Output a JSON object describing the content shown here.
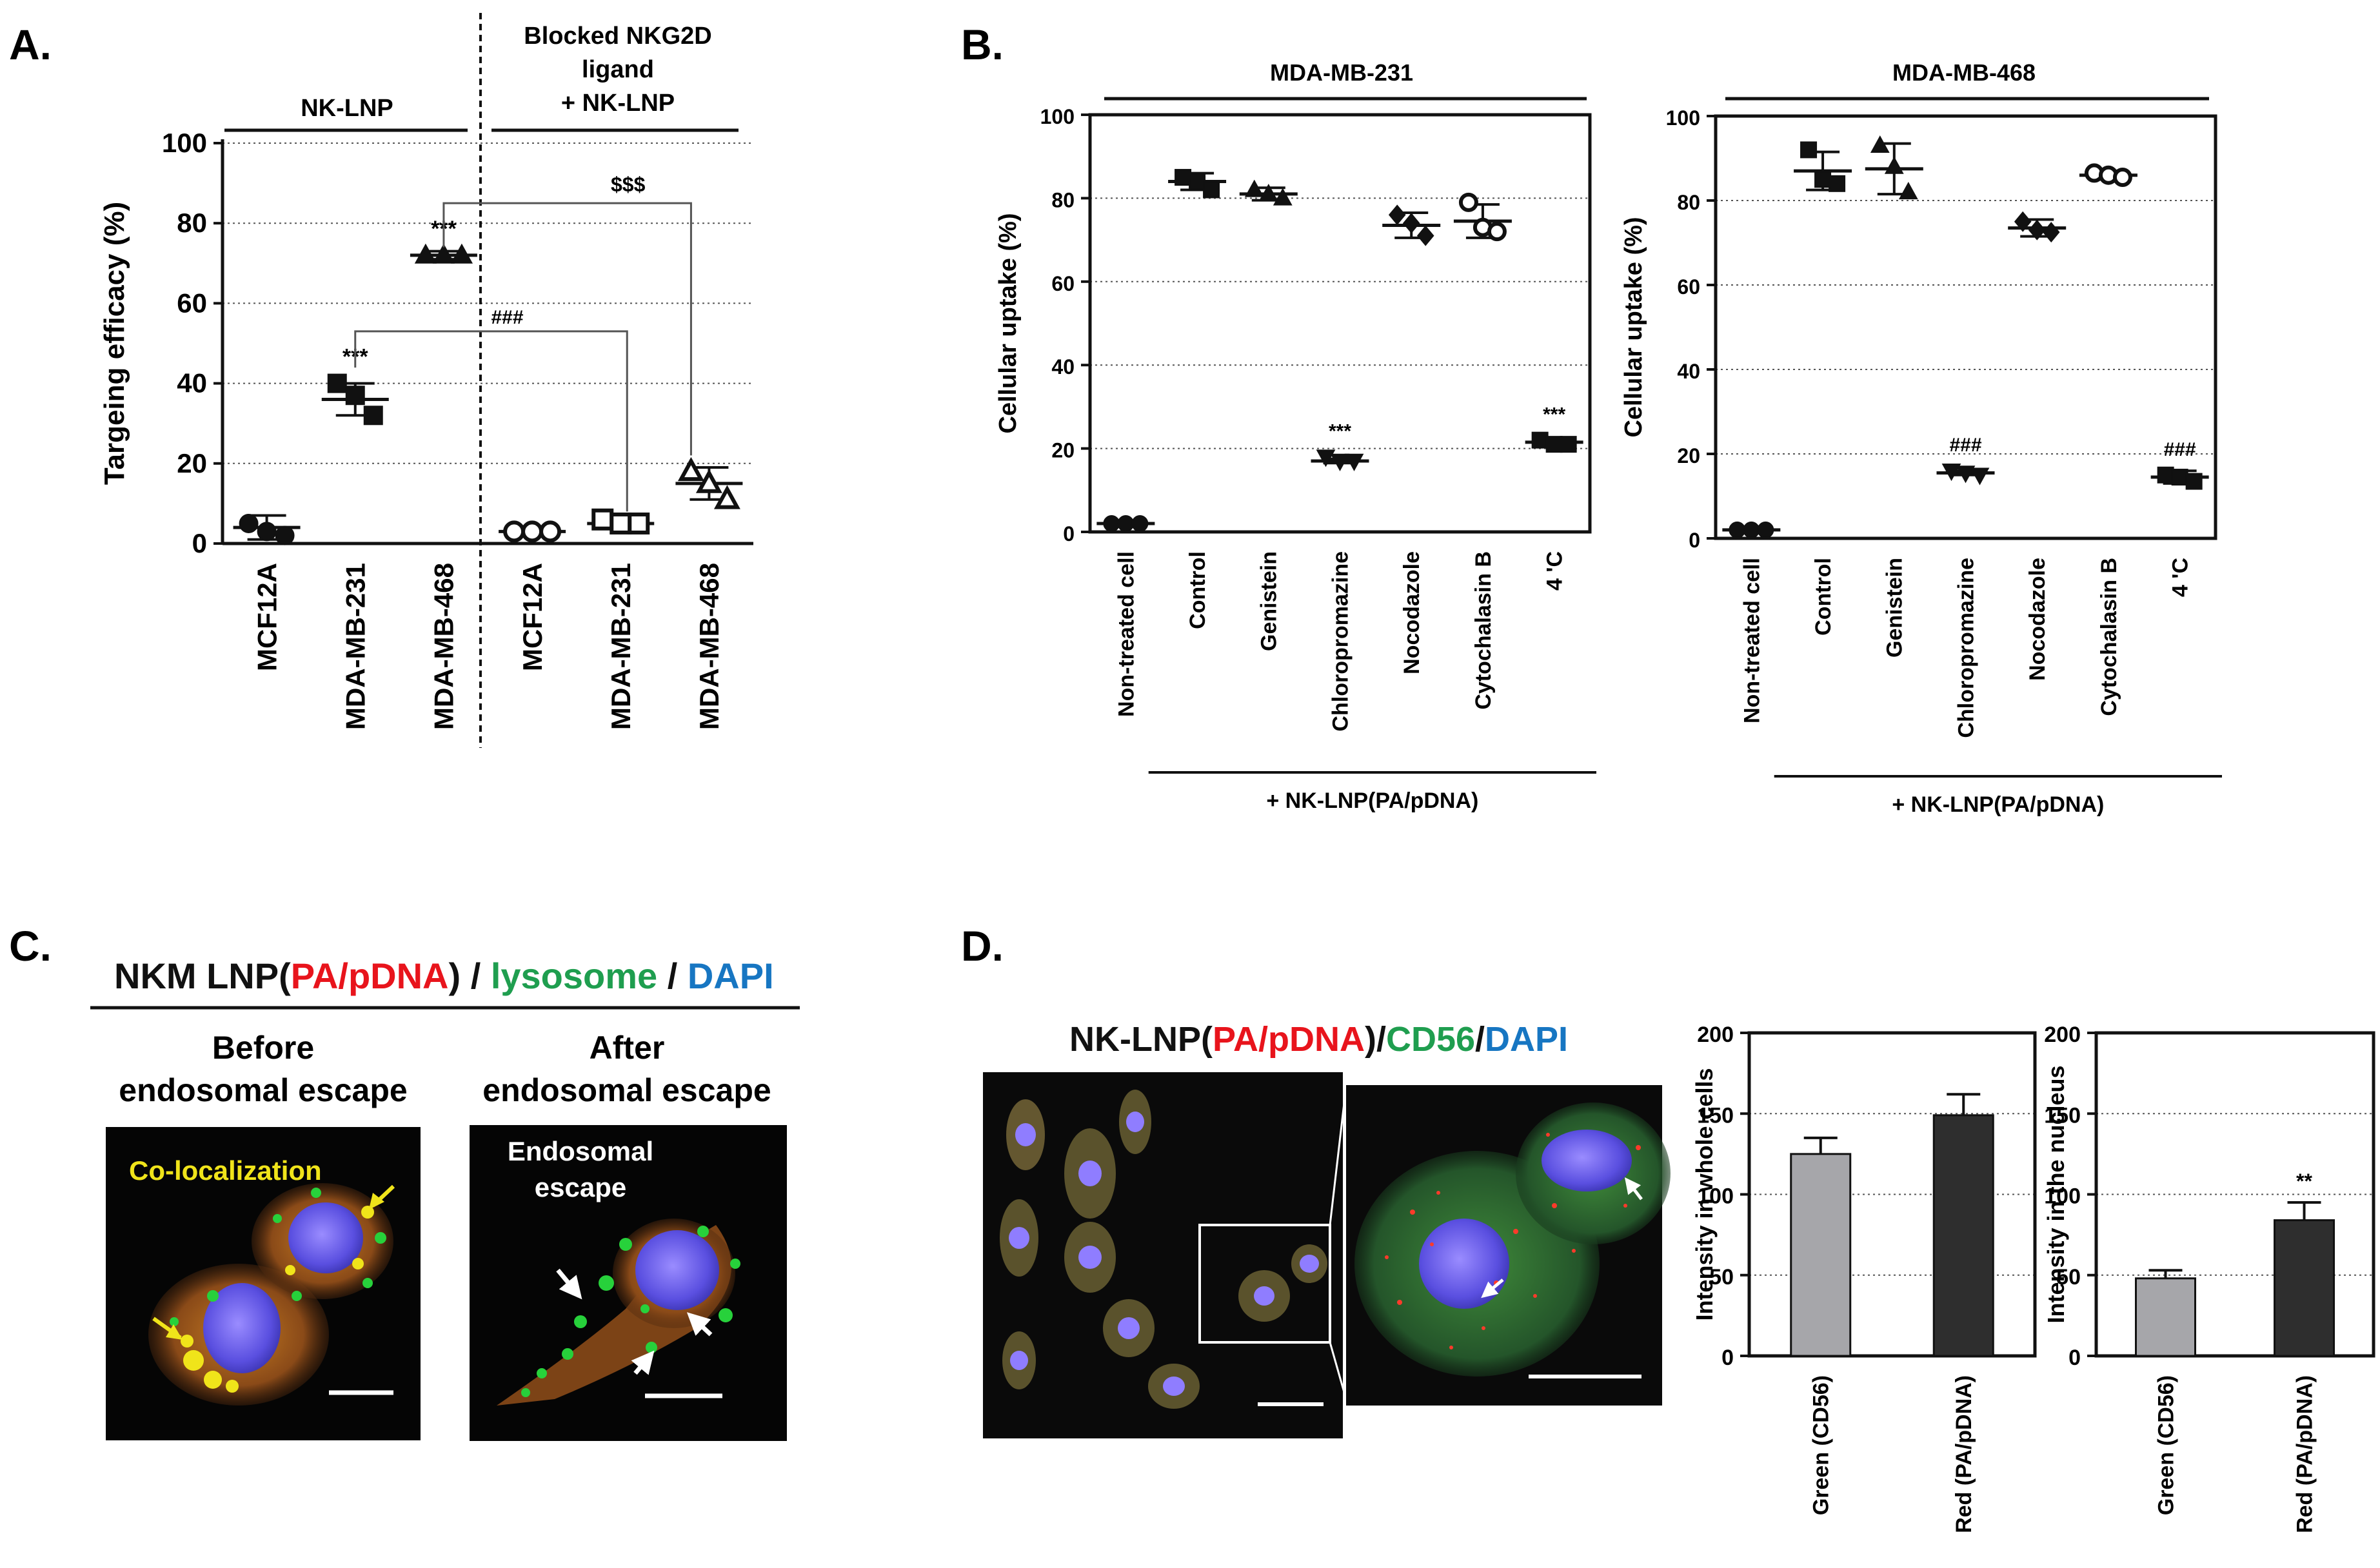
{
  "figure": {
    "panels": [
      {
        "label": "A."
      },
      {
        "label": "B."
      },
      {
        "label": "C."
      },
      {
        "label": "D."
      }
    ]
  },
  "panel_a": {
    "group_labels": [
      "NK-LNP",
      "Blocked NKG2D\nligand\n+ NK-LNP"
    ],
    "significance": [
      "***",
      "***",
      "###",
      "$$$"
    ]
  },
  "panel_b": {
    "treatment_label": "+ NK-LNP(PA/pDNA)"
  },
  "panel_c": {
    "title_parts": [
      {
        "text": "NKM LNP(",
        "color": "#111111"
      },
      {
        "text": "PA/pDNA",
        "color": "#e8141c"
      },
      {
        "text": ") / ",
        "color": "#111111"
      },
      {
        "text": "lysosome",
        "color": "#1f9e4f"
      },
      {
        "text": " / ",
        "color": "#111111"
      },
      {
        "text": "DAPI",
        "color": "#1776c2"
      }
    ],
    "before_label": "Before\nendosomal escape",
    "after_label": "After\nendosomal escape",
    "coloc_label": "Co-localization",
    "escape_label": "Endosomal\nescape"
  },
  "panel_d": {
    "title_parts": [
      {
        "text": "NK-LNP(",
        "color": "#111111"
      },
      {
        "text": "PA/pDNA",
        "color": "#e8141c"
      },
      {
        "text": ")/",
        "color": "#111111"
      },
      {
        "text": "CD56",
        "color": "#1f9e4f"
      },
      {
        "text": "/",
        "color": "#111111"
      },
      {
        "text": "DAPI",
        "color": "#1776c2"
      }
    ]
  },
  "chart_data": [
    {
      "id": "A",
      "type": "scatter",
      "ylabel": "Targeing efficacy (%)",
      "ylim": [
        0,
        100
      ],
      "yticks": [
        0,
        20,
        40,
        60,
        80,
        100
      ],
      "grid": "horizontal dotted",
      "categories": [
        "MCF12A",
        "MDA-MB-231",
        "MDA-MB-468",
        "MCF12A",
        "MDA-MB-231",
        "MDA-MB-468"
      ],
      "groups": [
        "NK-LNP",
        "NK-LNP",
        "NK-LNP",
        "Blocked NKG2D ligand + NK-LNP",
        "Blocked NKG2D ligand + NK-LNP",
        "Blocked NKG2D ligand + NK-LNP"
      ],
      "markers": [
        "circle",
        "square",
        "triangle",
        "circle-open",
        "square-open",
        "triangle-open"
      ],
      "points": [
        [
          5,
          3,
          2
        ],
        [
          40,
          37,
          32
        ],
        [
          72,
          72,
          72
        ],
        [
          3,
          3,
          3
        ],
        [
          6,
          5,
          5
        ],
        [
          18,
          15,
          11
        ]
      ],
      "mean": [
        4,
        36,
        72,
        3,
        5,
        15
      ],
      "sd": [
        3,
        4,
        1,
        0.5,
        1,
        4
      ],
      "stars": [
        "",
        "***",
        "***",
        "",
        "",
        ""
      ],
      "brackets": [
        {
          "from": "MDA-MB-231",
          "to": "MDA-MB-231 (blocked)",
          "label": "###"
        },
        {
          "from": "MDA-MB-468",
          "to": "MDA-MB-468 (blocked)",
          "label": "$$$"
        }
      ]
    },
    {
      "id": "B1",
      "type": "scatter",
      "title": "MDA-MB-231",
      "ylabel": "Cellular uptake (%)",
      "ylim": [
        0,
        100
      ],
      "yticks": [
        0,
        20,
        40,
        60,
        80,
        100
      ],
      "grid": "horizontal dotted",
      "categories": [
        "Non-treated cell",
        "Control",
        "Genistein",
        "Chloropromazine",
        "Nocodazole",
        "Cytochalasin B",
        "4 'C"
      ],
      "markers": [
        "circle",
        "square",
        "triangle",
        "triangle-down",
        "diamond",
        "circle-open",
        "square"
      ],
      "points": [
        [
          2,
          2,
          2
        ],
        [
          85,
          84,
          82
        ],
        [
          82,
          81,
          80
        ],
        [
          18,
          17,
          17
        ],
        [
          76,
          74,
          71
        ],
        [
          79,
          73,
          72
        ],
        [
          22,
          21,
          21
        ]
      ],
      "mean": [
        2,
        84,
        81,
        17,
        73.5,
        74.5,
        21.5
      ],
      "sd": [
        0.5,
        2,
        1.5,
        0.5,
        3,
        4,
        1
      ],
      "stars": [
        "",
        "",
        "",
        "***",
        "",
        "",
        "***"
      ],
      "treatment_label": "+ NK-LNP(PA/pDNA)"
    },
    {
      "id": "B2",
      "type": "scatter",
      "title": "MDA-MB-468",
      "ylabel": "Cellular uptake (%)",
      "ylim": [
        0,
        100
      ],
      "yticks": [
        0,
        20,
        40,
        60,
        80,
        100
      ],
      "grid": "horizontal dotted",
      "categories": [
        "Non-treated cell",
        "Control",
        "Genistein",
        "Chloropromazine",
        "Nocodazole",
        "Cytochalasin B",
        "4 'C"
      ],
      "markers": [
        "circle",
        "square",
        "triangle",
        "triangle-down",
        "diamond",
        "circle-open",
        "square"
      ],
      "points": [
        [
          2,
          2,
          2
        ],
        [
          92,
          85,
          84
        ],
        [
          93,
          88,
          82
        ],
        [
          16,
          15.5,
          15
        ],
        [
          75,
          73,
          72.5
        ],
        [
          86.5,
          86,
          85.5
        ],
        [
          15,
          14.5,
          13.5
        ]
      ],
      "mean": [
        2,
        87,
        87.5,
        15.5,
        73.5,
        86,
        14.5
      ],
      "sd": [
        0.5,
        4.5,
        6,
        0.5,
        2,
        1,
        1.5
      ],
      "stars": [
        "",
        "",
        "",
        "###",
        "",
        "",
        "###"
      ],
      "treatment_label": "+ NK-LNP(PA/pDNA)"
    },
    {
      "id": "D1",
      "type": "bar",
      "ylabel": "Intensity in whole cells",
      "ylim": [
        0,
        200
      ],
      "yticks": [
        0,
        50,
        100,
        150,
        200
      ],
      "grid": "horizontal dotted",
      "categories": [
        "Green (CD56)",
        "Red (PA/pDNA)"
      ],
      "values": [
        125,
        149
      ],
      "errors": [
        10,
        13
      ],
      "colors": [
        "#a6a6aa",
        "#2e2e2e"
      ],
      "stars": [
        "",
        ""
      ]
    },
    {
      "id": "D2",
      "type": "bar",
      "ylabel": "Intensity in the nucleus",
      "ylim": [
        0,
        200
      ],
      "yticks": [
        0,
        50,
        100,
        150,
        200
      ],
      "grid": "horizontal dotted",
      "categories": [
        "Green (CD56)",
        "Red (PA/pDNA)"
      ],
      "values": [
        48,
        84
      ],
      "errors": [
        5,
        11
      ],
      "colors": [
        "#a6a6aa",
        "#2e2e2e"
      ],
      "stars": [
        "",
        "**"
      ]
    }
  ]
}
